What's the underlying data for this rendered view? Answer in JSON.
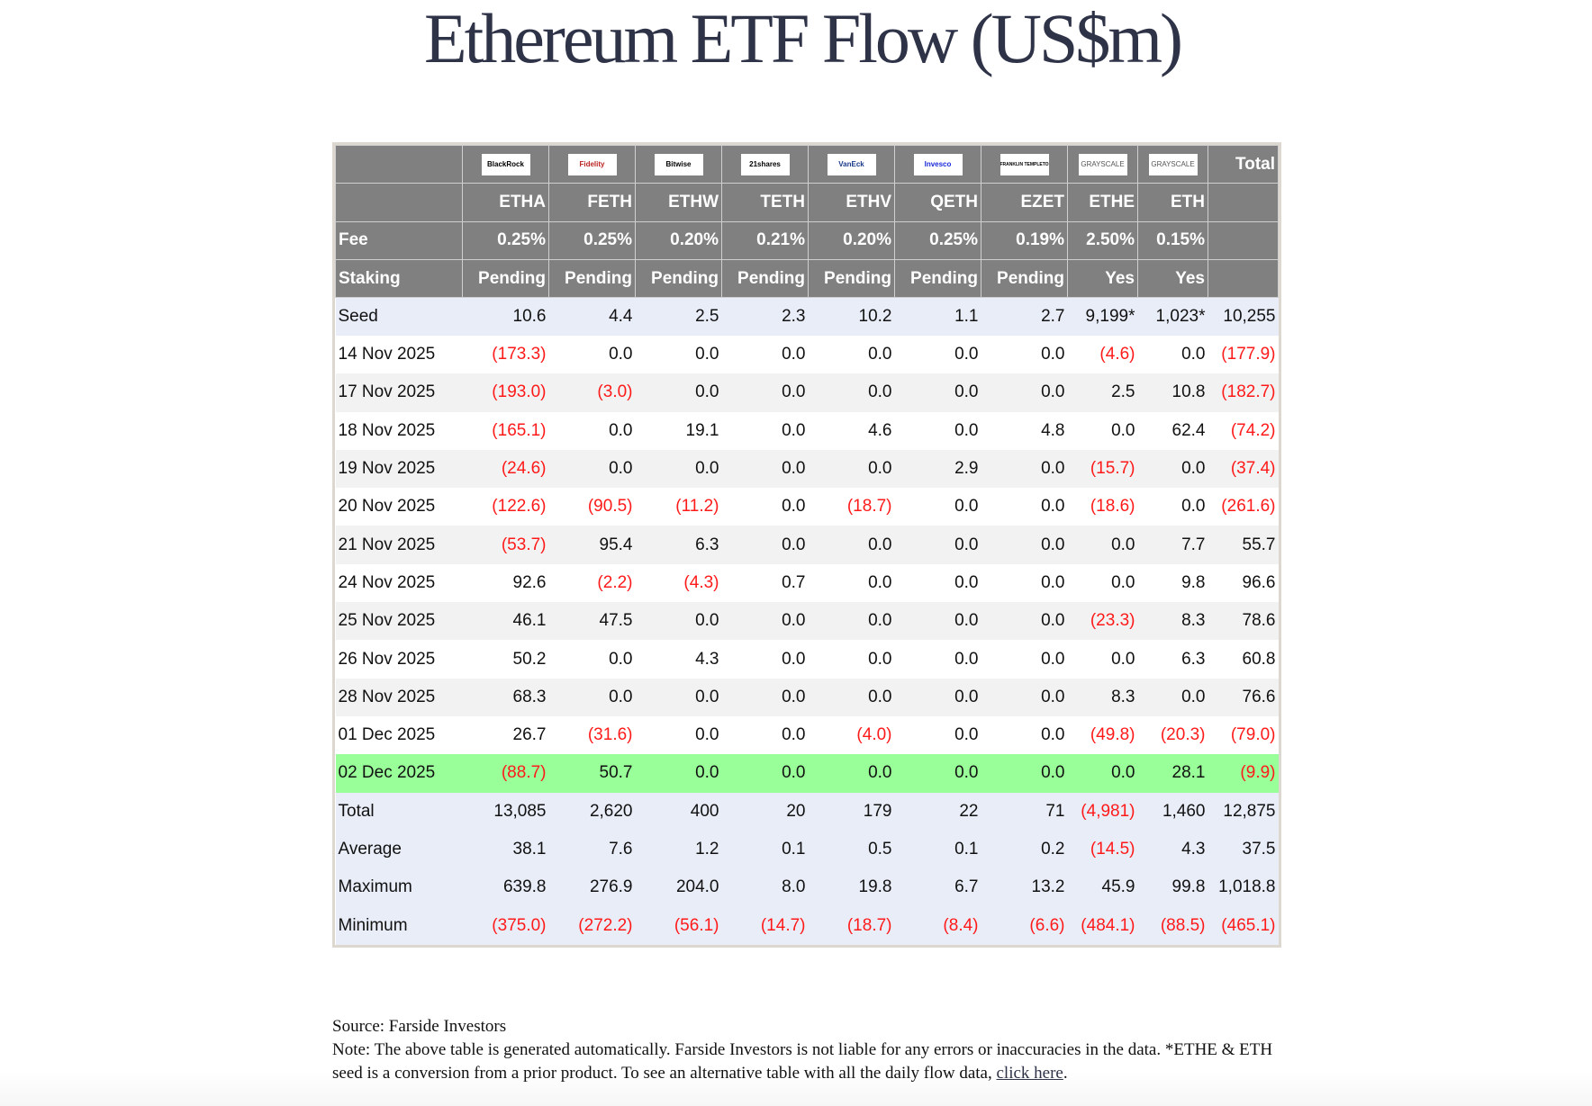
{
  "title": "Ethereum ETF Flow (US$m)",
  "issuers": [
    "BlackRock",
    "Fidelity",
    "Bitwise",
    "21shares",
    "VanEck",
    "Invesco",
    "FRANKLIN TEMPLETON",
    "GRAYSCALE",
    "GRAYSCALE"
  ],
  "total_header": "Total",
  "tickers": [
    "ETHA",
    "FETH",
    "ETHW",
    "TETH",
    "ETHV",
    "QETH",
    "EZET",
    "ETHE",
    "ETH"
  ],
  "fee_label": "Fee",
  "fees": [
    "0.25%",
    "0.25%",
    "0.20%",
    "0.21%",
    "0.20%",
    "0.25%",
    "0.19%",
    "2.50%",
    "0.15%"
  ],
  "staking_label": "Staking",
  "staking": [
    "Pending",
    "Pending",
    "Pending",
    "Pending",
    "Pending",
    "Pending",
    "Pending",
    "Yes",
    "Yes"
  ],
  "rows": [
    {
      "label": "Seed",
      "style": "blue",
      "values": [
        "10.6",
        "4.4",
        "2.5",
        "2.3",
        "10.2",
        "1.1",
        "2.7",
        "9,199*",
        "1,023*",
        "10,255"
      ]
    },
    {
      "label": "14 Nov 2025",
      "style": "white",
      "values": [
        "(173.3)",
        "0.0",
        "0.0",
        "0.0",
        "0.0",
        "0.0",
        "0.0",
        "(4.6)",
        "0.0",
        "(177.9)"
      ]
    },
    {
      "label": "17 Nov 2025",
      "style": "grey",
      "values": [
        "(193.0)",
        "(3.0)",
        "0.0",
        "0.0",
        "0.0",
        "0.0",
        "0.0",
        "2.5",
        "10.8",
        "(182.7)"
      ]
    },
    {
      "label": "18 Nov 2025",
      "style": "white",
      "values": [
        "(165.1)",
        "0.0",
        "19.1",
        "0.0",
        "4.6",
        "0.0",
        "4.8",
        "0.0",
        "62.4",
        "(74.2)"
      ]
    },
    {
      "label": "19 Nov 2025",
      "style": "grey",
      "values": [
        "(24.6)",
        "0.0",
        "0.0",
        "0.0",
        "0.0",
        "2.9",
        "0.0",
        "(15.7)",
        "0.0",
        "(37.4)"
      ]
    },
    {
      "label": "20 Nov 2025",
      "style": "white",
      "values": [
        "(122.6)",
        "(90.5)",
        "(11.2)",
        "0.0",
        "(18.7)",
        "0.0",
        "0.0",
        "(18.6)",
        "0.0",
        "(261.6)"
      ]
    },
    {
      "label": "21 Nov 2025",
      "style": "grey",
      "values": [
        "(53.7)",
        "95.4",
        "6.3",
        "0.0",
        "0.0",
        "0.0",
        "0.0",
        "0.0",
        "7.7",
        "55.7"
      ]
    },
    {
      "label": "24 Nov 2025",
      "style": "white",
      "values": [
        "92.6",
        "(2.2)",
        "(4.3)",
        "0.7",
        "0.0",
        "0.0",
        "0.0",
        "0.0",
        "9.8",
        "96.6"
      ]
    },
    {
      "label": "25 Nov 2025",
      "style": "grey",
      "values": [
        "46.1",
        "47.5",
        "0.0",
        "0.0",
        "0.0",
        "0.0",
        "0.0",
        "(23.3)",
        "8.3",
        "78.6"
      ]
    },
    {
      "label": "26 Nov 2025",
      "style": "white",
      "values": [
        "50.2",
        "0.0",
        "4.3",
        "0.0",
        "0.0",
        "0.0",
        "0.0",
        "0.0",
        "6.3",
        "60.8"
      ]
    },
    {
      "label": "28 Nov 2025",
      "style": "grey",
      "values": [
        "68.3",
        "0.0",
        "0.0",
        "0.0",
        "0.0",
        "0.0",
        "0.0",
        "8.3",
        "0.0",
        "76.6"
      ]
    },
    {
      "label": "01 Dec 2025",
      "style": "white",
      "values": [
        "26.7",
        "(31.6)",
        "0.0",
        "0.0",
        "(4.0)",
        "0.0",
        "0.0",
        "(49.8)",
        "(20.3)",
        "(79.0)"
      ]
    },
    {
      "label": "02 Dec 2025",
      "style": "green",
      "values": [
        "(88.7)",
        "50.7",
        "0.0",
        "0.0",
        "0.0",
        "0.0",
        "0.0",
        "0.0",
        "28.1",
        "(9.9)"
      ]
    },
    {
      "label": "Total",
      "style": "blue",
      "values": [
        "13,085",
        "2,620",
        "400",
        "20",
        "179",
        "22",
        "71",
        "(4,981)",
        "1,460",
        "12,875"
      ]
    },
    {
      "label": "Average",
      "style": "blue",
      "values": [
        "38.1",
        "7.6",
        "1.2",
        "0.1",
        "0.5",
        "0.1",
        "0.2",
        "(14.5)",
        "4.3",
        "37.5"
      ]
    },
    {
      "label": "Maximum",
      "style": "blue",
      "values": [
        "639.8",
        "276.9",
        "204.0",
        "8.0",
        "19.8",
        "6.7",
        "13.2",
        "45.9",
        "99.8",
        "1,018.8"
      ]
    },
    {
      "label": "Minimum",
      "style": "blue",
      "values": [
        "(375.0)",
        "(272.2)",
        "(56.1)",
        "(14.7)",
        "(18.7)",
        "(8.4)",
        "(6.6)",
        "(484.1)",
        "(88.5)",
        "(465.1)"
      ]
    }
  ],
  "footer": {
    "source": "Source: Farside Investors",
    "note": "Note: The above table is generated automatically. Farside Investors is not liable for any errors or inaccuracies in the data. *ETHE & ETH seed is a conversion from a prior product.  To see an alternative table with all the daily flow data, ",
    "link": "click here",
    "end": "."
  }
}
